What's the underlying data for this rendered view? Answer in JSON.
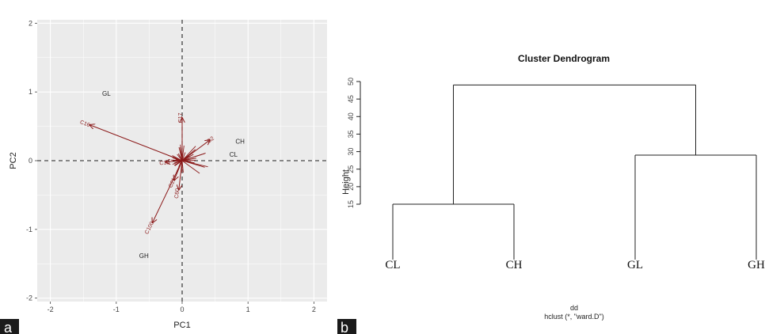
{
  "chart_data": [
    {
      "type": "scatter",
      "panel_label": "a",
      "xlabel": "PC1",
      "ylabel": "PC2",
      "xlim": [
        -2.2,
        2.2
      ],
      "ylim": [
        -2.05,
        2.05
      ],
      "xticks": [
        "-2",
        "-1",
        "0",
        "1",
        "2"
      ],
      "yticks": [
        "-2",
        "-1",
        "0",
        "1",
        "2"
      ],
      "grid": true,
      "reference_lines": "dashed at x=0 and y=0",
      "points": [
        {
          "label": "GL",
          "x": -1.15,
          "y": 0.98
        },
        {
          "label": "CH",
          "x": 0.88,
          "y": 0.28
        },
        {
          "label": "CL",
          "x": 0.78,
          "y": 0.09
        },
        {
          "label": "GH",
          "x": -0.58,
          "y": -1.38
        }
      ],
      "vectors": [
        {
          "label": "C16",
          "x": -1.4,
          "y": 0.52
        },
        {
          "label": "C17",
          "x": 0.0,
          "y": 0.62
        },
        {
          "label": "C2",
          "x": 0.42,
          "y": 0.3
        },
        {
          "label": "C38",
          "x": -0.25,
          "y": -0.02
        },
        {
          "label": "C21",
          "x": -0.12,
          "y": -0.28
        },
        {
          "label": "C60",
          "x": -0.05,
          "y": -0.42
        },
        {
          "label": "C100",
          "x": -0.45,
          "y": -0.9
        }
      ],
      "colors": {
        "vectors": "#8b1a1a",
        "panel_bg": "#ebebeb",
        "grid": "#ffffff"
      }
    },
    {
      "type": "dendrogram",
      "panel_label": "b",
      "title": "Cluster Dendrogram",
      "ylabel": "Height",
      "yticks": [
        15,
        20,
        25,
        30,
        35,
        40,
        45,
        50
      ],
      "ylim": [
        15,
        50
      ],
      "leaves": [
        "CL",
        "CH",
        "GL",
        "GH"
      ],
      "merges": [
        {
          "pair": [
            "CL",
            "CH"
          ],
          "height": 15
        },
        {
          "pair": [
            "GL",
            "GH"
          ],
          "height": 29
        },
        {
          "pair": [
            "CL-CH",
            "GL-GH"
          ],
          "height": 49
        }
      ],
      "xlabel": "dd",
      "sub": "hclust (*, \"ward.D\")"
    }
  ]
}
